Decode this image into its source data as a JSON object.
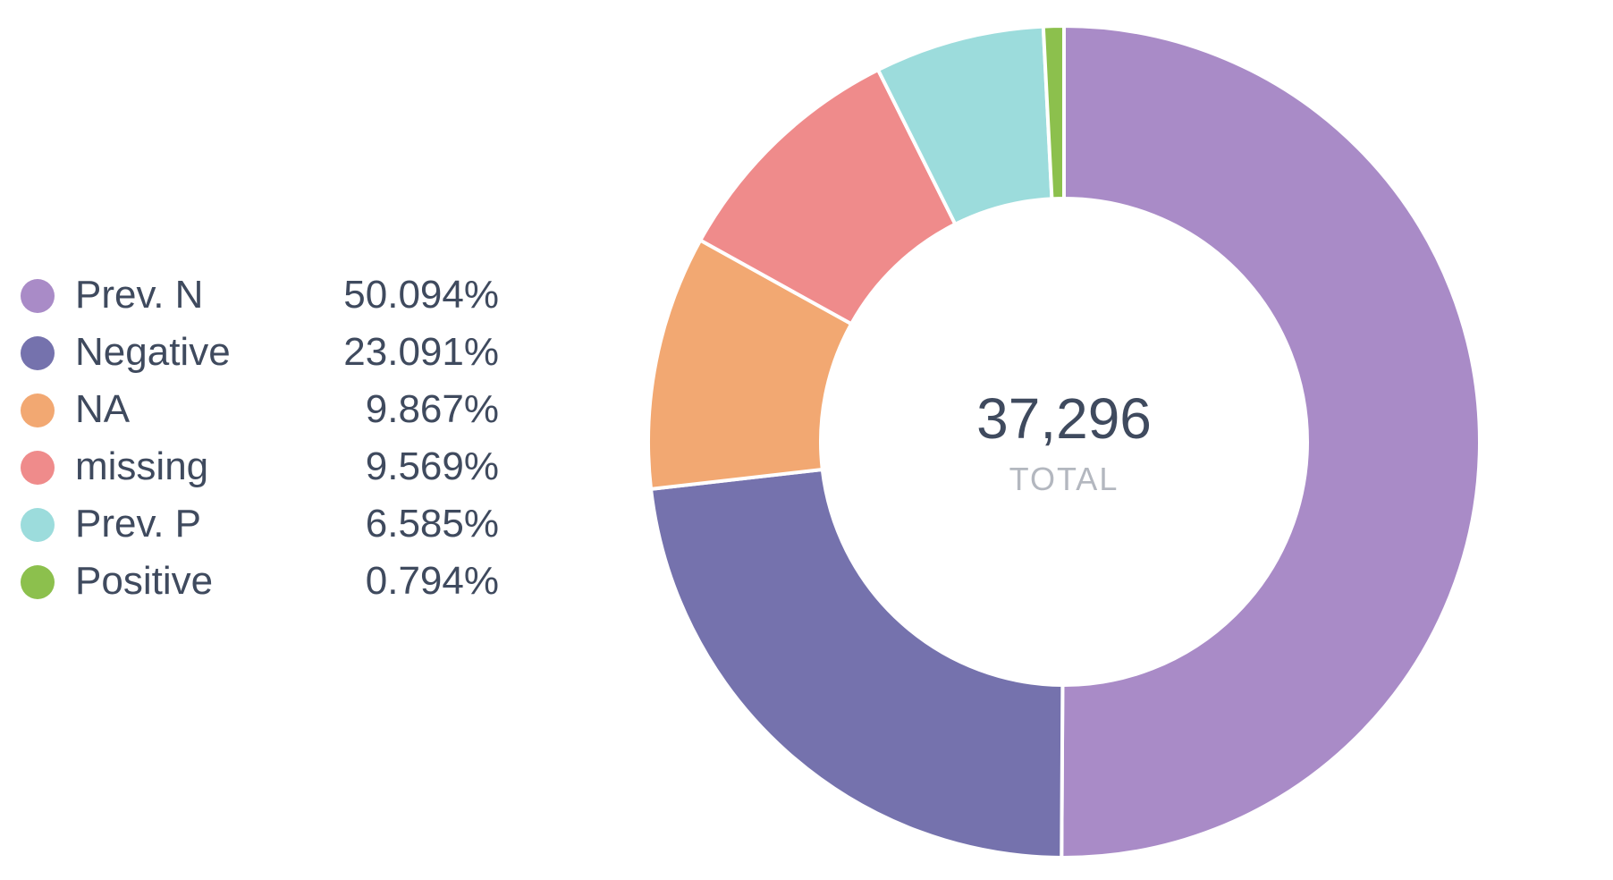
{
  "chart_data": {
    "type": "pie",
    "variant": "donut",
    "categories": [
      "Prev. N",
      "Negative",
      "NA",
      "missing",
      "Prev. P",
      "Positive"
    ],
    "values": [
      50.094,
      23.091,
      9.867,
      9.569,
      6.585,
      0.794
    ],
    "value_labels": [
      "50.094%",
      "23.091%",
      "9.867%",
      "9.569%",
      "6.585%",
      "0.794%"
    ],
    "colors": [
      "#a98bc7",
      "#7572ad",
      "#f2a872",
      "#ef8b8b",
      "#9cdcdc",
      "#8cc04d"
    ],
    "center_total": "37,296",
    "center_label": "TOTAL",
    "legend_position": "left"
  }
}
